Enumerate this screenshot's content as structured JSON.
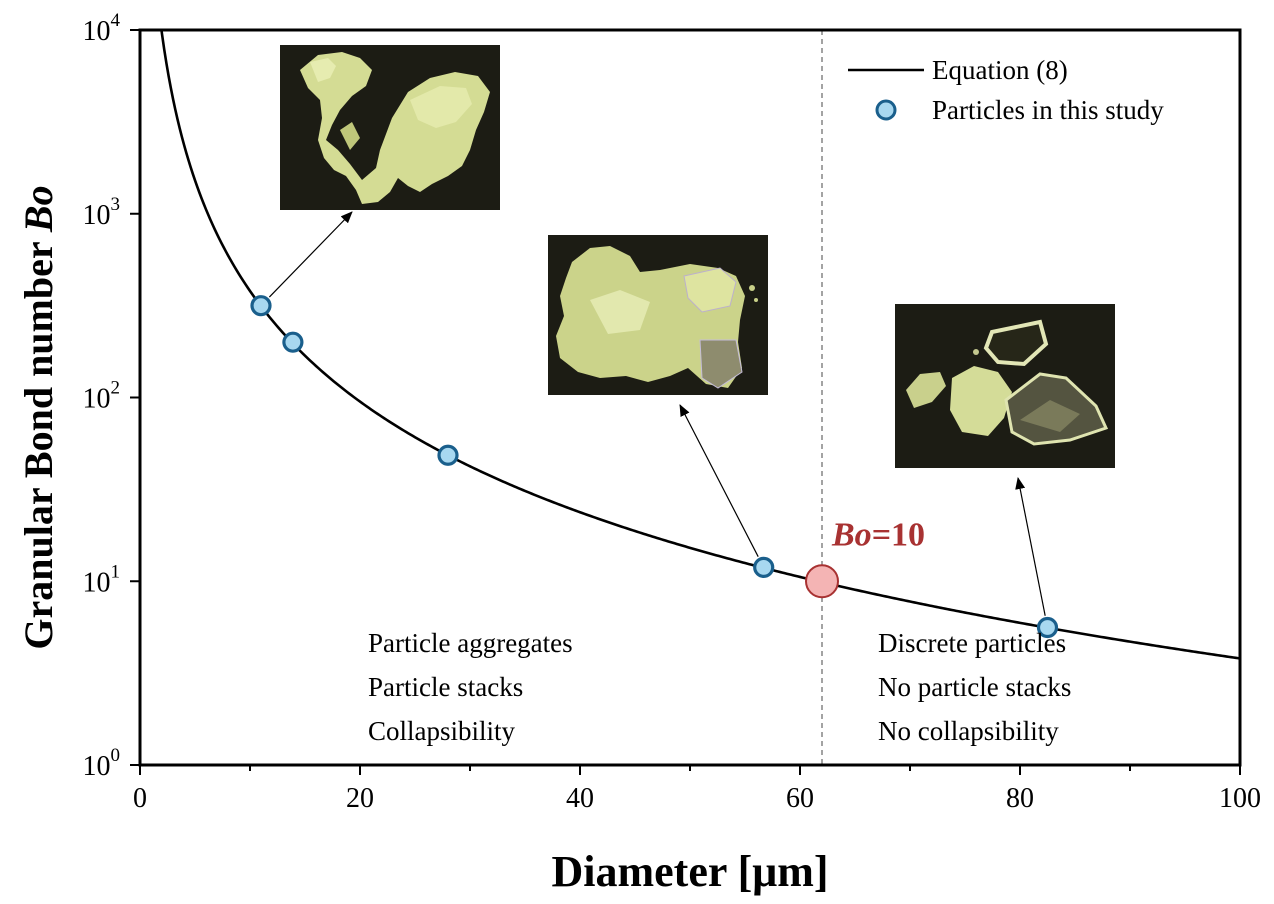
{
  "chart_data": {
    "type": "line",
    "xlabel": "Diameter [μm]",
    "ylabel": "Granular Bond number ",
    "ylabel_italic": "Bo",
    "xlim": [
      0,
      100
    ],
    "ylim": [
      1,
      10000
    ],
    "yscale": "log",
    "grid": false,
    "legend_position": "top-right",
    "x_ticks": [
      "0",
      "20",
      "40",
      "60",
      "80",
      "100"
    ],
    "y_ticks": [
      {
        "value": 1,
        "base": "10",
        "exp": "0"
      },
      {
        "value": 10,
        "base": "10",
        "exp": "1"
      },
      {
        "value": 100,
        "base": "10",
        "exp": "2"
      },
      {
        "value": 1000,
        "base": "10",
        "exp": "3"
      },
      {
        "value": 10000,
        "base": "10",
        "exp": "4"
      }
    ],
    "series": [
      {
        "name": "Equation (8)",
        "kind": "curve",
        "color": "#000000",
        "law": "Bo = 38000 / d^2"
      },
      {
        "name": "Particles in this study",
        "kind": "scatter",
        "marker_fill": "#a8d8f0",
        "marker_edge": "#1a5f8c",
        "x": [
          11.0,
          13.9,
          28.0,
          56.7,
          82.5
        ],
        "y": [
          316,
          200,
          48.5,
          11.9,
          5.6
        ]
      }
    ],
    "threshold": {
      "x": 62.0,
      "y": 10,
      "label_italic": "Bo",
      "label_rest": "=10",
      "color": "#a83232",
      "marker_fill": "#f4b4b4"
    },
    "annotations": {
      "left": [
        "Particle aggregates",
        "Particle stacks",
        "Collapsibility"
      ],
      "right": [
        "Discrete particles",
        "No particle stacks",
        "No collapsibility"
      ]
    }
  },
  "colors": {
    "axis": "#000000",
    "micrograph_background": "#1c1c14",
    "particle": "#d8e098"
  },
  "images": [
    {
      "name": "aggregate-micrograph",
      "points_to_index": 0
    },
    {
      "name": "stack-micrograph",
      "points_to_index": 3
    },
    {
      "name": "discrete-micrograph",
      "points_to_index": 4
    }
  ]
}
